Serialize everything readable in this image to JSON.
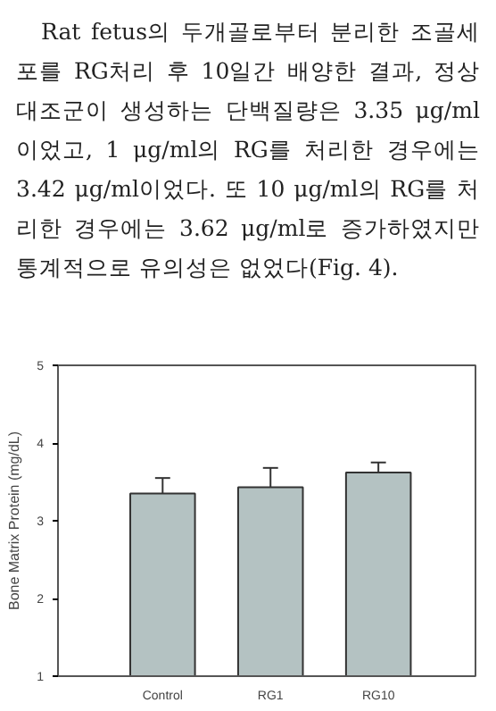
{
  "chart_data": {
    "type": "bar",
    "annotations": [
      "Rat fetus의 두개골로부터 분리한 조골세포를 RG처리 후 10일간 배양한 결과, 정상 대조군이 생성하는 단백질량은 3.35 μg/ml 이었고, 1 μg/ml의 RG를 처리한 경우에는 3.42 μg/ml이었다. 또 10 μg/ml의 RG를 처리한 경우에는 3.62 μg/ml로 증가하였지만 통계적으로 유의성은 없었다(Fig. 4)."
    ],
    "ylabel": "Bone Matrix Protein (mg/dL)",
    "categories": [
      "Control",
      "RG1",
      "RG10"
    ],
    "values": [
      3.35,
      3.43,
      3.62
    ],
    "errors": [
      [
        3.35,
        3.55
      ],
      [
        3.43,
        3.68
      ],
      [
        3.62,
        3.75
      ]
    ],
    "color": "#b4c2c2",
    "ylim": [
      1,
      5
    ],
    "yticks": [
      1,
      2,
      3,
      4,
      5
    ],
    "grid": false
  }
}
